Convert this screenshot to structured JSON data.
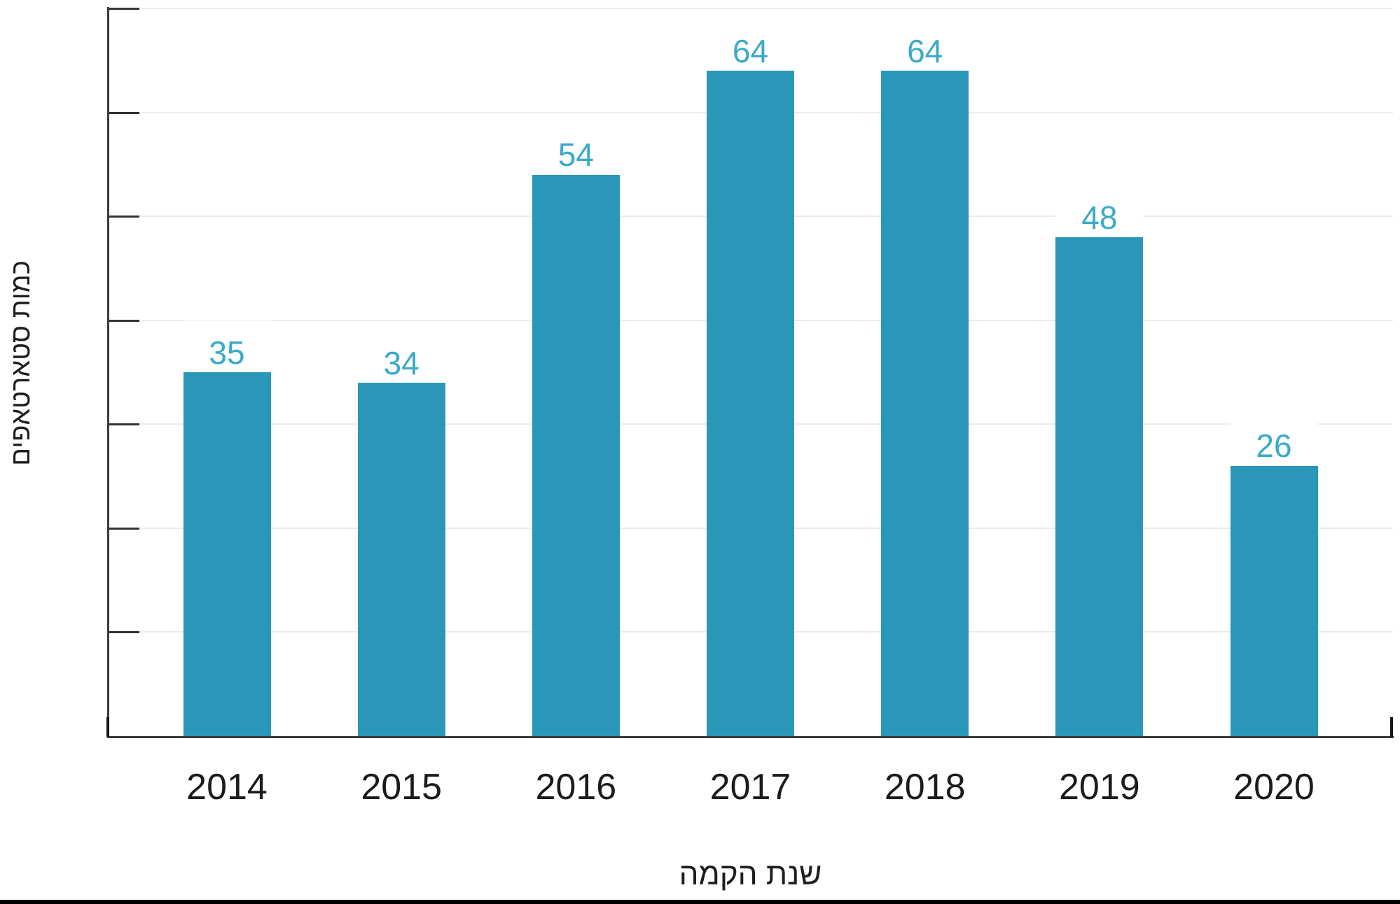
{
  "chart_data": {
    "type": "bar",
    "categories": [
      "2014",
      "2015",
      "2016",
      "2017",
      "2018",
      "2019",
      "2020"
    ],
    "values": [
      35,
      34,
      54,
      64,
      64,
      48,
      26
    ],
    "title": "",
    "xlabel": "שנת הקמה",
    "ylabel": "כמות סטארטאפים",
    "ylim": [
      0,
      70
    ],
    "ytick_step": 10,
    "ytick_labels_visible": false,
    "grid": true,
    "legend": "none",
    "bar_value_labels_shown": true,
    "colors": {
      "bar": "#2a96b8",
      "value_label": "#3aaac8",
      "axis": "#3a3a3a",
      "axis_end_cap": "#161616",
      "gridline": "#ebebee",
      "tick": "#333333",
      "category_label": "#1b1b1b",
      "axis_title": "#1e1e1e",
      "bottom_border": "#000000"
    }
  }
}
